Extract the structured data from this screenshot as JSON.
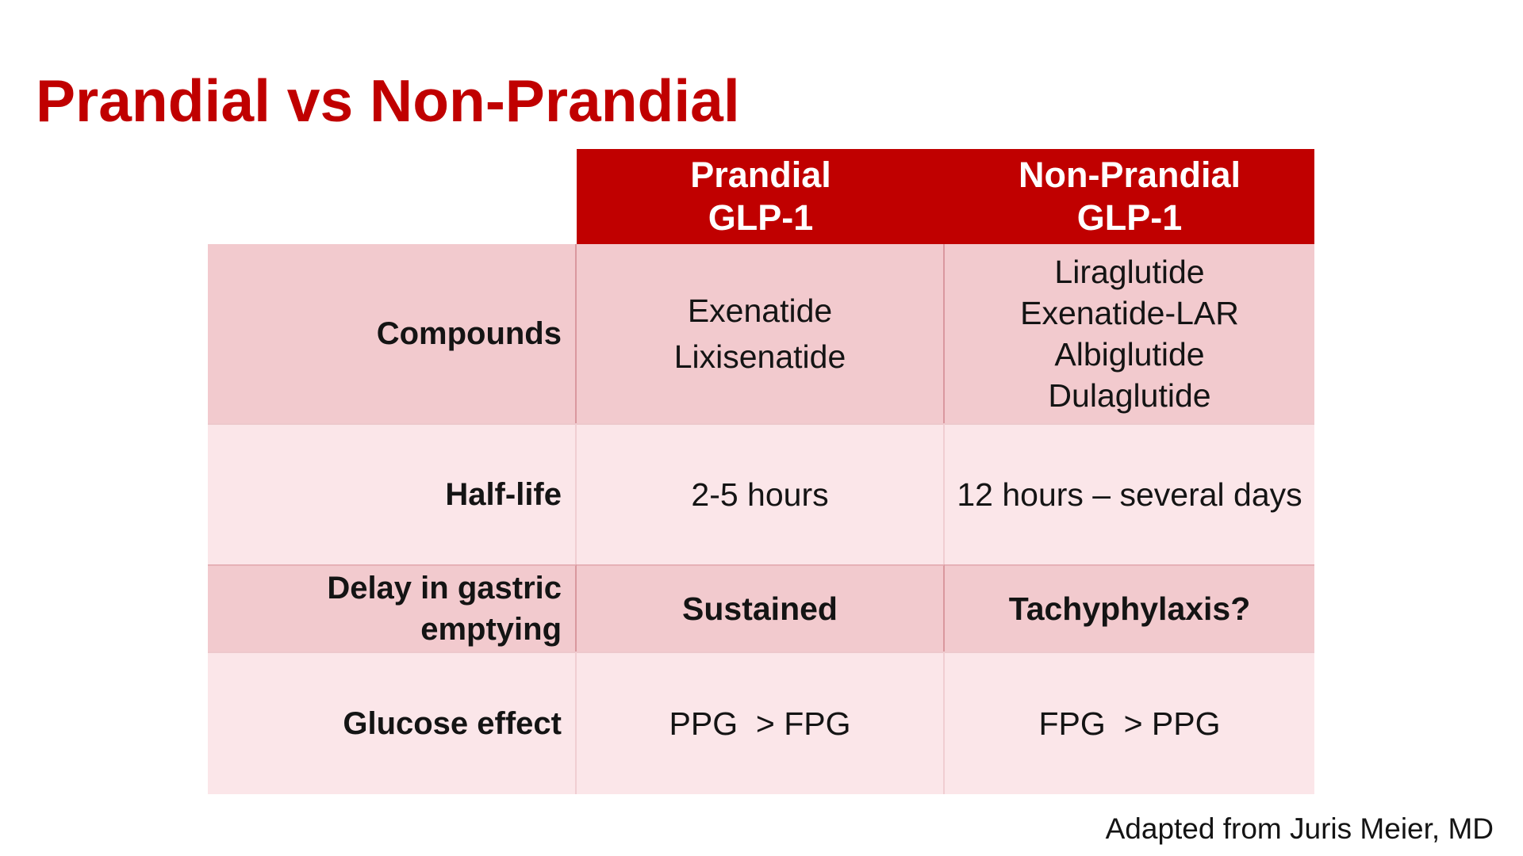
{
  "title": "Prandial vs Non-Prandial",
  "attribution": "Adapted from Juris Meier, MD",
  "colors": {
    "accent_red": "#C00000",
    "band_dark_pink": "#F2CACE",
    "band_light_pink": "#FBE6E9",
    "header_text": "#FFFFFF",
    "body_text": "#141414"
  },
  "table": {
    "column_headers": [
      {
        "line1": "Prandial",
        "line2": "GLP-1"
      },
      {
        "line1": "Non-Prandial",
        "line2": "GLP-1"
      }
    ],
    "rows": [
      {
        "label": "Compounds",
        "prandial_lines": [
          "Exenatide",
          "Lixisenatide"
        ],
        "non_prandial_lines": [
          "Liraglutide",
          "Exenatide-LAR",
          "Albiglutide",
          "Dulaglutide"
        ]
      },
      {
        "label": "Half-life",
        "prandial": "2-5 hours",
        "non_prandial": "12 hours – several days"
      },
      {
        "label": "Delay in gastric emptying",
        "prandial": "Sustained",
        "non_prandial": "Tachyphylaxis?"
      },
      {
        "label": "Glucose effect",
        "prandial": "PPG  > FPG",
        "non_prandial": "FPG  > PPG"
      }
    ]
  }
}
